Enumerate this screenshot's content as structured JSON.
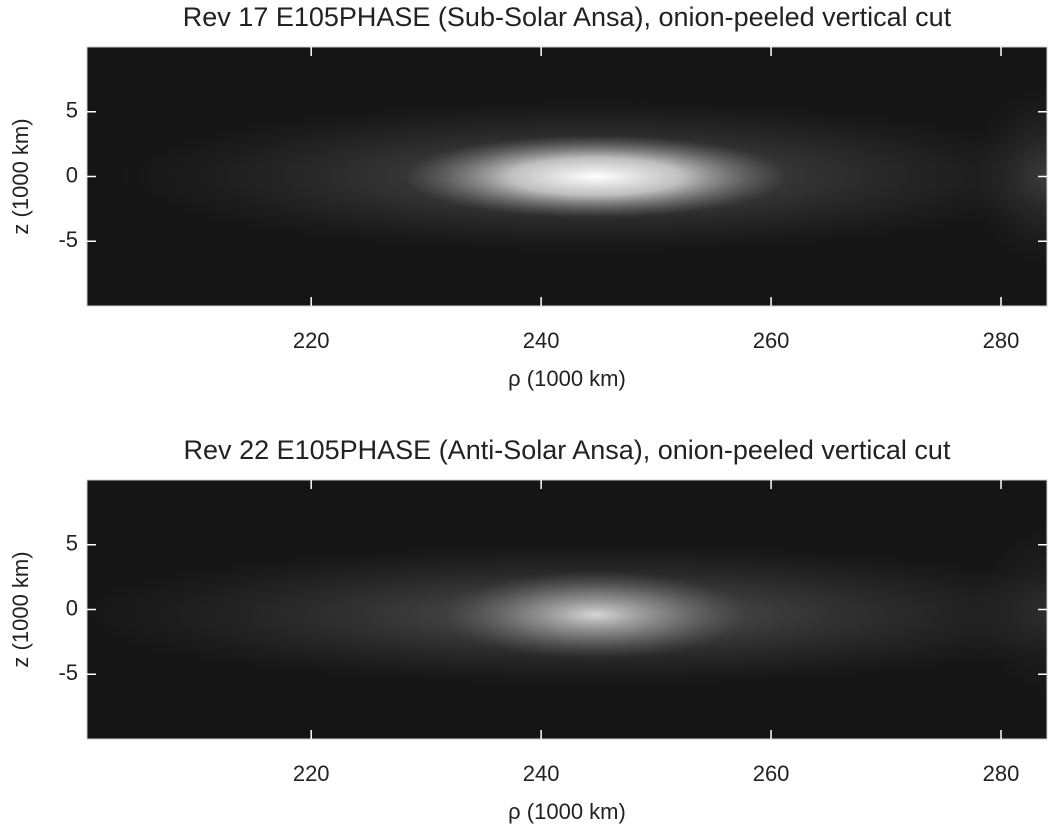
{
  "chart_data": [
    {
      "type": "image",
      "title": "Rev 17 E105PHASE (Sub-Solar Ansa), onion-peeled vertical cut",
      "x_label": "ρ (1000 km)",
      "y_label": "z (1000 km)",
      "xlim": [
        200.5,
        284
      ],
      "xticks": [
        220,
        240,
        260,
        280
      ],
      "ylim": [
        -10,
        10
      ],
      "yticks": [
        -5,
        0,
        5
      ],
      "colormap": "gray"
    },
    {
      "type": "image",
      "title": "Rev 22 E105PHASE (Anti-Solar Ansa), onion-peeled vertical cut",
      "x_label": "ρ (1000 km)",
      "y_label": "z (1000 km)",
      "xlim": [
        200.5,
        284
      ],
      "xticks": [
        220,
        240,
        260,
        280
      ],
      "ylim": [
        -10,
        10
      ],
      "yticks": [
        -5,
        0,
        5
      ],
      "colormap": "gray"
    }
  ]
}
